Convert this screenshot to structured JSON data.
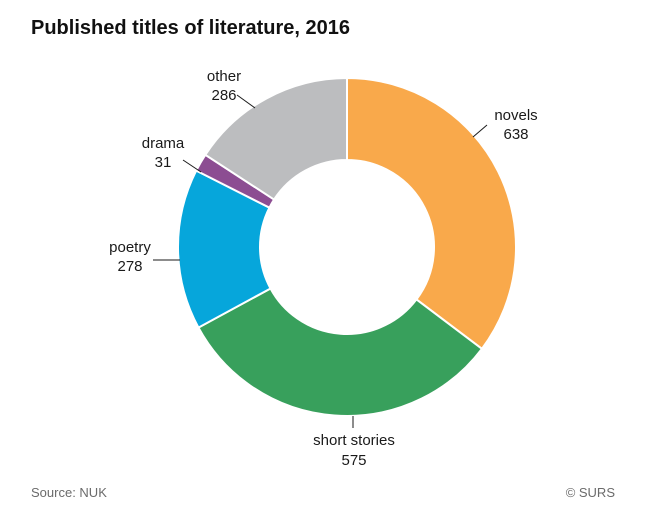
{
  "chart_data": {
    "type": "pie",
    "title": "Published titles of literature, 2016",
    "slices": [
      {
        "label": "novels",
        "value": 638,
        "color": "#f9a94b"
      },
      {
        "label": "short stories",
        "value": 575,
        "color": "#38a05c"
      },
      {
        "label": "poetry",
        "value": 278,
        "color": "#06a6db"
      },
      {
        "label": "drama",
        "value": 31,
        "color": "#8c4d92"
      },
      {
        "label": "other",
        "value": 286,
        "color": "#bcbdbf"
      }
    ],
    "donut": true,
    "legend": "none (slice labels)"
  },
  "footer": {
    "source": "Source: NUK",
    "copyright": "© SURS"
  }
}
